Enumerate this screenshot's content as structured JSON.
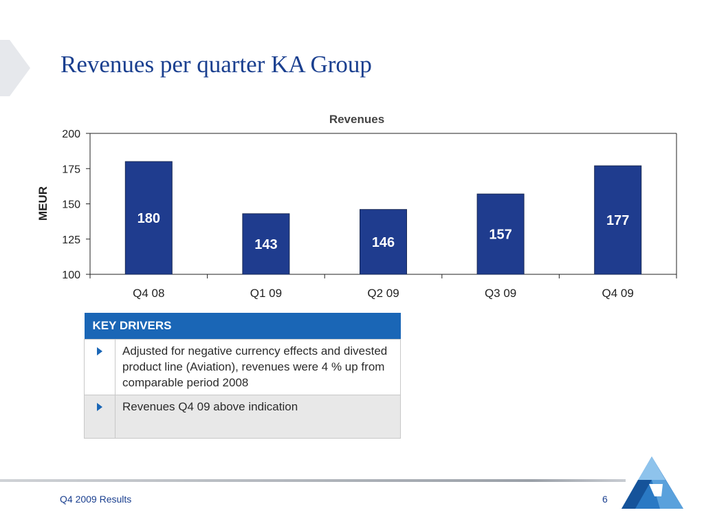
{
  "slide": {
    "title": "Revenues per quarter KA Group",
    "footer": "Q4 2009 Results",
    "page_number": "6"
  },
  "colors": {
    "bar": "#1f3c8e",
    "title": "#1a3f8f",
    "table_header": "#1a66b6"
  },
  "chart_data": {
    "type": "bar",
    "title": "Revenues",
    "ylabel": "MEUR",
    "xlabel": "",
    "categories": [
      "Q4 08",
      "Q1 09",
      "Q2 09",
      "Q3 09",
      "Q4 09"
    ],
    "values": [
      180,
      143,
      146,
      157,
      177
    ],
    "value_labels": [
      "180",
      "143",
      "146",
      "157",
      "177"
    ],
    "ylim": [
      100,
      200
    ],
    "yticks": [
      100,
      125,
      150,
      175,
      200
    ],
    "grid": false,
    "legend": "none"
  },
  "key_drivers": {
    "header": "KEY DRIVERS",
    "bullet_icon": "triangle-right-icon",
    "items": [
      "Adjusted for negative currency effects and divested product line (Aviation), revenues were 4 % up from comparable period 2008",
      "Revenues Q4 09 above indication"
    ]
  },
  "logo": {
    "icon": "company-logo-icon"
  }
}
